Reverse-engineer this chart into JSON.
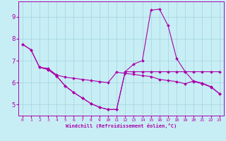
{
  "background_color": "#c8eef5",
  "grid_color": "#a8d8e0",
  "line_color": "#aa00aa",
  "xlabel": "Windchill (Refroidissement éolien,°C)",
  "xlim": [
    -0.5,
    23.5
  ],
  "ylim": [
    4.5,
    9.7
  ],
  "yticks": [
    5,
    6,
    7,
    8,
    9
  ],
  "xticks": [
    0,
    1,
    2,
    3,
    4,
    5,
    6,
    7,
    8,
    9,
    10,
    11,
    12,
    13,
    14,
    15,
    16,
    17,
    18,
    19,
    20,
    21,
    22,
    23
  ],
  "line1_x": [
    0,
    1,
    2,
    3,
    4,
    5,
    6,
    7,
    8,
    9,
    10,
    11,
    12,
    13,
    14,
    15,
    16,
    17,
    18,
    19,
    20,
    21,
    22,
    23
  ],
  "line1_y": [
    7.75,
    7.5,
    6.7,
    6.6,
    6.3,
    5.85,
    5.55,
    5.3,
    5.05,
    4.88,
    4.78,
    4.78,
    6.5,
    6.5,
    6.5,
    6.5,
    6.5,
    6.5,
    6.5,
    6.5,
    6.5,
    6.5,
    6.5,
    6.5
  ],
  "line2_x": [
    0,
    1,
    2,
    3,
    4,
    5,
    6,
    7,
    8,
    9,
    10,
    11,
    12,
    13,
    14,
    15,
    16,
    17,
    18,
    19,
    20,
    21,
    22,
    23
  ],
  "line2_y": [
    7.75,
    7.5,
    6.7,
    6.6,
    6.3,
    5.85,
    5.55,
    5.3,
    5.05,
    4.88,
    4.78,
    4.78,
    6.5,
    6.85,
    7.0,
    9.3,
    9.35,
    8.6,
    7.1,
    6.5,
    6.05,
    5.95,
    5.8,
    5.5
  ],
  "line3_x": [
    2,
    3,
    4,
    5,
    6,
    7,
    8,
    9,
    10,
    11,
    12,
    13,
    14,
    15,
    16,
    17,
    18,
    19,
    20,
    21,
    22,
    23
  ],
  "line3_y": [
    6.7,
    6.65,
    6.35,
    6.25,
    6.2,
    6.15,
    6.1,
    6.05,
    6.0,
    6.48,
    6.42,
    6.38,
    6.32,
    6.28,
    6.15,
    6.1,
    6.05,
    5.95,
    6.08,
    5.98,
    5.82,
    5.5
  ]
}
